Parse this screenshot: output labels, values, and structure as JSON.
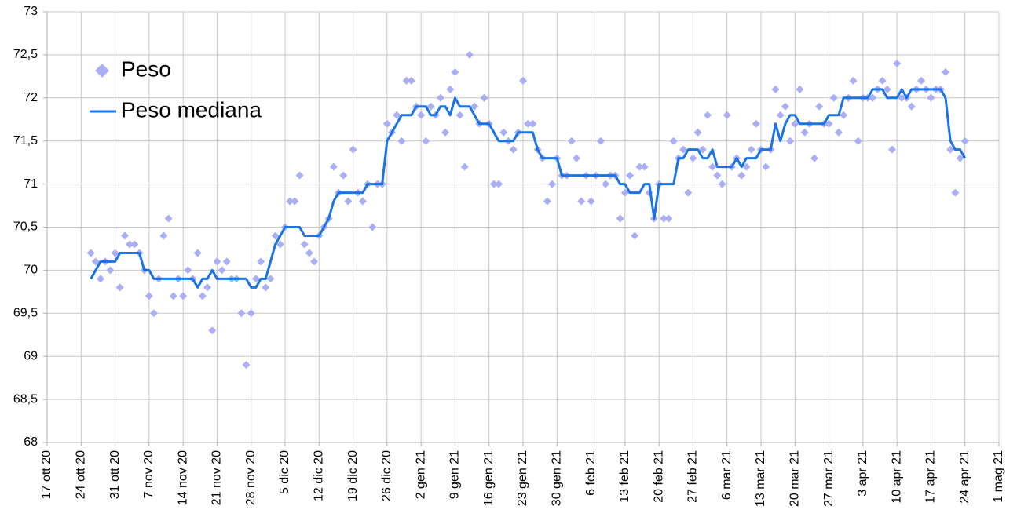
{
  "chart_data": {
    "type": "line",
    "x": [
      "2020-10-26",
      "2020-10-27",
      "2020-10-28",
      "2020-10-29",
      "2020-10-30",
      "2020-10-31",
      "2020-11-01",
      "2020-11-02",
      "2020-11-03",
      "2020-11-04",
      "2020-11-05",
      "2020-11-06",
      "2020-11-07",
      "2020-11-08",
      "2020-11-09",
      "2020-11-10",
      "2020-11-11",
      "2020-11-12",
      "2020-11-13",
      "2020-11-14",
      "2020-11-15",
      "2020-11-16",
      "2020-11-17",
      "2020-11-18",
      "2020-11-19",
      "2020-11-20",
      "2020-11-21",
      "2020-11-22",
      "2020-11-23",
      "2020-11-24",
      "2020-11-25",
      "2020-11-26",
      "2020-11-27",
      "2020-11-28",
      "2020-11-29",
      "2020-11-30",
      "2020-12-01",
      "2020-12-02",
      "2020-12-03",
      "2020-12-04",
      "2020-12-05",
      "2020-12-06",
      "2020-12-07",
      "2020-12-08",
      "2020-12-09",
      "2020-12-10",
      "2020-12-11",
      "2020-12-12",
      "2020-12-13",
      "2020-12-14",
      "2020-12-15",
      "2020-12-16",
      "2020-12-17",
      "2020-12-18",
      "2020-12-19",
      "2020-12-20",
      "2020-12-21",
      "2020-12-22",
      "2020-12-23",
      "2020-12-24",
      "2020-12-25",
      "2020-12-26",
      "2020-12-27",
      "2020-12-28",
      "2020-12-29",
      "2020-12-30",
      "2020-12-31",
      "2021-01-01",
      "2021-01-02",
      "2021-01-03",
      "2021-01-04",
      "2021-01-05",
      "2021-01-06",
      "2021-01-07",
      "2021-01-08",
      "2021-01-09",
      "2021-01-10",
      "2021-01-11",
      "2021-01-12",
      "2021-01-13",
      "2021-01-14",
      "2021-01-15",
      "2021-01-16",
      "2021-01-17",
      "2021-01-18",
      "2021-01-19",
      "2021-01-20",
      "2021-01-21",
      "2021-01-22",
      "2021-01-23",
      "2021-01-24",
      "2021-01-25",
      "2021-01-26",
      "2021-01-27",
      "2021-01-28",
      "2021-01-29",
      "2021-01-30",
      "2021-01-31",
      "2021-02-01",
      "2021-02-02",
      "2021-02-03",
      "2021-02-04",
      "2021-02-05",
      "2021-02-06",
      "2021-02-07",
      "2021-02-08",
      "2021-02-09",
      "2021-02-10",
      "2021-02-11",
      "2021-02-12",
      "2021-02-13",
      "2021-02-14",
      "2021-02-15",
      "2021-02-16",
      "2021-02-17",
      "2021-02-18",
      "2021-02-19",
      "2021-02-20",
      "2021-02-21",
      "2021-02-22",
      "2021-02-23",
      "2021-02-24",
      "2021-02-25",
      "2021-02-26",
      "2021-02-27",
      "2021-02-28",
      "2021-03-01",
      "2021-03-02",
      "2021-03-03",
      "2021-03-04",
      "2021-03-05",
      "2021-03-06",
      "2021-03-07",
      "2021-03-08",
      "2021-03-09",
      "2021-03-10",
      "2021-03-11",
      "2021-03-12",
      "2021-03-13",
      "2021-03-14",
      "2021-03-15",
      "2021-03-16",
      "2021-03-17",
      "2021-03-18",
      "2021-03-19",
      "2021-03-20",
      "2021-03-21",
      "2021-03-22",
      "2021-03-23",
      "2021-03-24",
      "2021-03-25",
      "2021-03-26",
      "2021-03-27",
      "2021-03-28",
      "2021-03-29",
      "2021-03-30",
      "2021-03-31",
      "2021-04-01",
      "2021-04-02",
      "2021-04-03",
      "2021-04-04",
      "2021-04-05",
      "2021-04-06",
      "2021-04-07",
      "2021-04-08",
      "2021-04-09",
      "2021-04-10",
      "2021-04-11",
      "2021-04-12",
      "2021-04-13",
      "2021-04-14",
      "2021-04-15",
      "2021-04-16",
      "2021-04-17",
      "2021-04-18",
      "2021-04-19",
      "2021-04-20",
      "2021-04-21",
      "2021-04-22",
      "2021-04-23",
      "2021-04-24"
    ],
    "series": [
      {
        "name": "Peso",
        "color": "#a9aef5",
        "mode": "markers",
        "values": [
          70.2,
          70.1,
          69.9,
          70.1,
          70.0,
          70.2,
          69.8,
          70.4,
          70.3,
          70.3,
          70.2,
          70.0,
          69.7,
          69.5,
          69.9,
          70.4,
          70.6,
          69.7,
          69.9,
          69.7,
          70.0,
          69.9,
          70.2,
          69.7,
          69.8,
          69.3,
          70.1,
          70.0,
          70.1,
          69.9,
          69.9,
          69.5,
          68.9,
          69.5,
          69.9,
          70.1,
          69.8,
          69.9,
          70.4,
          70.3,
          70.5,
          70.8,
          70.8,
          71.1,
          70.3,
          70.2,
          70.1,
          70.4,
          70.5,
          70.6,
          71.2,
          70.9,
          71.1,
          70.8,
          71.4,
          70.9,
          70.8,
          71.0,
          70.5,
          71.0,
          71.0,
          71.7,
          71.6,
          71.8,
          71.5,
          72.2,
          72.2,
          71.9,
          71.8,
          71.5,
          71.9,
          71.8,
          72.0,
          71.6,
          72.1,
          72.3,
          71.8,
          71.2,
          72.5,
          71.9,
          71.7,
          72.0,
          71.7,
          71.0,
          71.0,
          71.6,
          71.5,
          71.4,
          71.6,
          72.2,
          71.7,
          71.7,
          71.4,
          71.3,
          70.8,
          71.0,
          71.3,
          71.1,
          71.1,
          71.5,
          71.3,
          70.8,
          71.1,
          70.8,
          71.1,
          71.5,
          71.0,
          71.1,
          71.1,
          70.6,
          70.9,
          71.1,
          70.4,
          71.2,
          71.2,
          70.9,
          70.6,
          71.0,
          70.6,
          70.6,
          71.5,
          71.3,
          71.4,
          70.9,
          71.3,
          71.6,
          71.4,
          71.8,
          71.2,
          71.1,
          71.0,
          71.8,
          71.2,
          71.3,
          71.1,
          71.2,
          71.4,
          71.7,
          71.4,
          71.2,
          71.4,
          72.1,
          71.8,
          71.9,
          71.5,
          71.7,
          72.1,
          71.6,
          71.7,
          71.3,
          71.9,
          71.7,
          71.7,
          72.0,
          71.6,
          71.8,
          72.0,
          72.2,
          71.5,
          72.0,
          72.0,
          72.0,
          72.1,
          72.2,
          72.1,
          71.4,
          72.4,
          72.0,
          72.0,
          71.9,
          72.1,
          72.2,
          72.1,
          72.0,
          72.1,
          72.1,
          72.3,
          71.4,
          70.9,
          71.3,
          71.5
        ]
      },
      {
        "name": "Peso mediana",
        "color": "#1a74e8",
        "mode": "lines",
        "values": [
          69.9,
          70.0,
          70.1,
          70.1,
          70.1,
          70.1,
          70.2,
          70.2,
          70.2,
          70.2,
          70.2,
          70.0,
          70.0,
          69.9,
          69.9,
          69.9,
          69.9,
          69.9,
          69.9,
          69.9,
          69.9,
          69.9,
          69.8,
          69.9,
          69.9,
          70.0,
          69.9,
          69.9,
          69.9,
          69.9,
          69.9,
          69.9,
          69.9,
          69.8,
          69.8,
          69.9,
          69.9,
          70.1,
          70.3,
          70.4,
          70.5,
          70.5,
          70.5,
          70.5,
          70.4,
          70.4,
          70.4,
          70.4,
          70.5,
          70.6,
          70.8,
          70.9,
          70.9,
          70.9,
          70.9,
          70.9,
          70.9,
          71.0,
          71.0,
          71.0,
          71.0,
          71.5,
          71.6,
          71.7,
          71.8,
          71.8,
          71.8,
          71.9,
          71.9,
          71.9,
          71.8,
          71.8,
          71.9,
          71.9,
          71.8,
          72.0,
          71.9,
          71.9,
          71.9,
          71.8,
          71.7,
          71.7,
          71.7,
          71.6,
          71.5,
          71.5,
          71.5,
          71.5,
          71.6,
          71.6,
          71.6,
          71.6,
          71.4,
          71.3,
          71.3,
          71.3,
          71.3,
          71.1,
          71.1,
          71.1,
          71.1,
          71.1,
          71.1,
          71.1,
          71.1,
          71.1,
          71.1,
          71.1,
          71.1,
          71.0,
          71.0,
          70.9,
          70.9,
          70.9,
          71.0,
          71.0,
          70.6,
          71.0,
          71.0,
          71.0,
          71.0,
          71.3,
          71.3,
          71.4,
          71.4,
          71.4,
          71.3,
          71.3,
          71.4,
          71.2,
          71.2,
          71.2,
          71.2,
          71.3,
          71.2,
          71.3,
          71.3,
          71.3,
          71.4,
          71.4,
          71.4,
          71.7,
          71.5,
          71.7,
          71.8,
          71.8,
          71.7,
          71.7,
          71.7,
          71.7,
          71.7,
          71.7,
          71.8,
          71.8,
          71.8,
          72.0,
          72.0,
          72.0,
          72.0,
          72.0,
          72.0,
          72.1,
          72.1,
          72.1,
          72.0,
          72.0,
          72.0,
          72.1,
          72.0,
          72.1,
          72.1,
          72.1,
          72.1,
          72.1,
          72.1,
          72.1,
          72.0,
          71.5,
          71.4,
          71.4,
          71.3
        ]
      }
    ],
    "xlim": [
      "2020-10-17",
      "2021-05-01"
    ],
    "xticks": [
      {
        "value": "2020-10-17",
        "label": "17 ott 20"
      },
      {
        "value": "2020-10-24",
        "label": "24 ott 20"
      },
      {
        "value": "2020-10-31",
        "label": "31 ott 20"
      },
      {
        "value": "2020-11-07",
        "label": "7 nov 20"
      },
      {
        "value": "2020-11-14",
        "label": "14 nov 20"
      },
      {
        "value": "2020-11-21",
        "label": "21 nov 20"
      },
      {
        "value": "2020-11-28",
        "label": "28 nov 20"
      },
      {
        "value": "2020-12-05",
        "label": "5 dic 20"
      },
      {
        "value": "2020-12-12",
        "label": "12 dic 20"
      },
      {
        "value": "2020-12-19",
        "label": "19 dic 20"
      },
      {
        "value": "2020-12-26",
        "label": "26 dic 20"
      },
      {
        "value": "2021-01-02",
        "label": "2 gen 21"
      },
      {
        "value": "2021-01-09",
        "label": "9 gen 21"
      },
      {
        "value": "2021-01-16",
        "label": "16 gen 21"
      },
      {
        "value": "2021-01-23",
        "label": "23 gen 21"
      },
      {
        "value": "2021-01-30",
        "label": "30 gen 21"
      },
      {
        "value": "2021-02-06",
        "label": "6 feb 21"
      },
      {
        "value": "2021-02-13",
        "label": "13 feb 21"
      },
      {
        "value": "2021-02-20",
        "label": "20 feb 21"
      },
      {
        "value": "2021-02-27",
        "label": "27 feb 21"
      },
      {
        "value": "2021-03-06",
        "label": "6 mar 21"
      },
      {
        "value": "2021-03-13",
        "label": "13 mar 21"
      },
      {
        "value": "2021-03-20",
        "label": "20 mar 21"
      },
      {
        "value": "2021-03-27",
        "label": "27 mar 21"
      },
      {
        "value": "2021-04-03",
        "label": "3 apr 21"
      },
      {
        "value": "2021-04-10",
        "label": "10 apr 21"
      },
      {
        "value": "2021-04-17",
        "label": "17 apr 21"
      },
      {
        "value": "2021-04-24",
        "label": "24 apr 21"
      },
      {
        "value": "2021-05-01",
        "label": "1 mag 21"
      }
    ],
    "ylim": [
      68,
      73
    ],
    "yticks": [
      68,
      {
        "value": 68.5,
        "label": "68,5"
      },
      69,
      {
        "value": 69.5,
        "label": "69,5"
      },
      70,
      {
        "value": 70.5,
        "label": "70,5"
      },
      71,
      {
        "value": 71.5,
        "label": "71,5"
      },
      72,
      {
        "value": 72.5,
        "label": "72,5"
      },
      73
    ],
    "grid": true,
    "legend": "upper left"
  }
}
